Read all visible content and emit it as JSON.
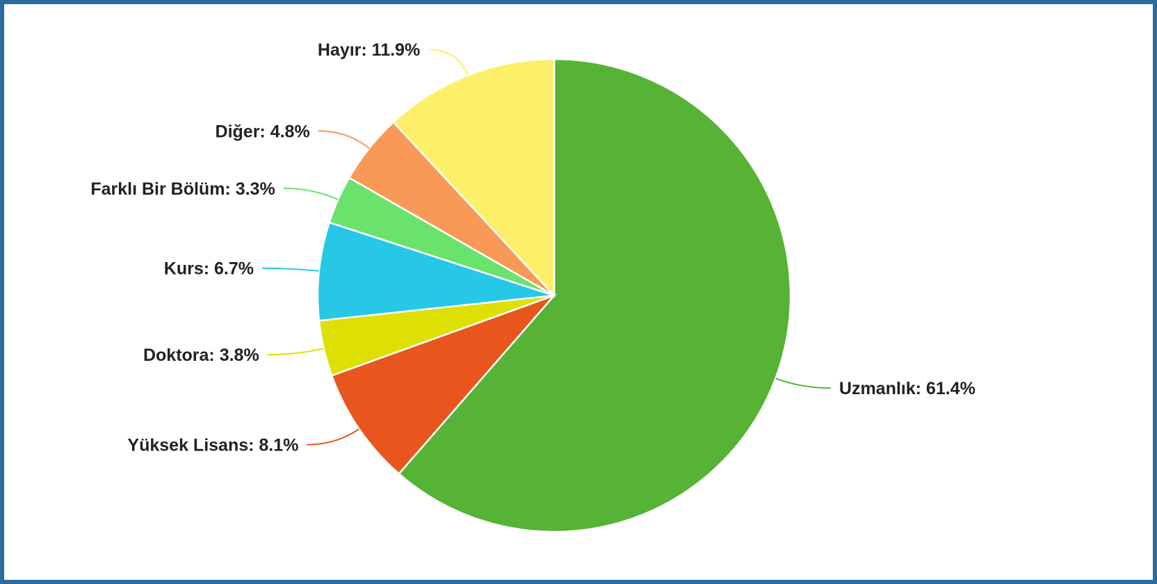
{
  "chart_data": {
    "type": "pie",
    "slices": [
      {
        "label": "Uzmanlık: 61.4%",
        "name": "Uzmanlık",
        "value": 61.4,
        "color": "#56b335"
      },
      {
        "label": "Yüksek Lisans: 8.1%",
        "name": "Yüksek Lisans",
        "value": 8.1,
        "color": "#e8561d"
      },
      {
        "label": "Doktora: 3.8%",
        "name": "Doktora",
        "value": 3.8,
        "color": "#dde000"
      },
      {
        "label": "Kurs: 6.7%",
        "name": "Kurs",
        "value": 6.7,
        "color": "#27c8e5"
      },
      {
        "label": "Farklı Bir Bölüm: 3.3%",
        "name": "Farklı Bir Bölüm",
        "value": 3.3,
        "color": "#69e36c"
      },
      {
        "label": "Diğer: 4.8%",
        "name": "Diğer",
        "value": 4.8,
        "color": "#f99958"
      },
      {
        "label": "Hayır: 11.9%",
        "name": "Hayır",
        "value": 11.9,
        "color": "#fdef68"
      }
    ],
    "start_angle": "top",
    "direction": "clockwise",
    "border_color": "#2a6ba0"
  }
}
